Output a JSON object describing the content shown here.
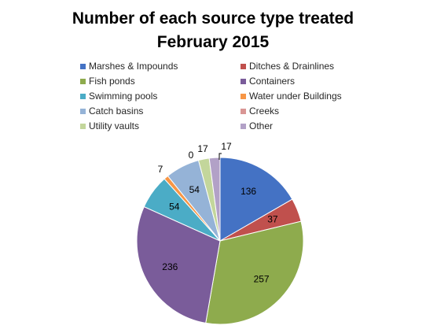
{
  "chart_data": {
    "type": "pie",
    "title": "Number of each source type treated",
    "subtitle": "February 2015",
    "legend_position": "top",
    "categories": [
      "Marshes & Impounds",
      "Ditches & Drainlines",
      "Fish ponds",
      "Containers",
      "Swimming pools",
      "Water under Buildings",
      "Catch basins",
      "Creeks",
      "Utility vaults",
      "Other"
    ],
    "values": [
      136,
      37,
      257,
      236,
      54,
      7,
      54,
      0,
      17,
      17
    ],
    "colors": [
      "#4472C4",
      "#C0504D",
      "#8EAB4D",
      "#7A5C9A",
      "#4BACC6",
      "#F79646",
      "#95B3D7",
      "#D99694",
      "#C3D69B",
      "#B2A1C7"
    ]
  }
}
